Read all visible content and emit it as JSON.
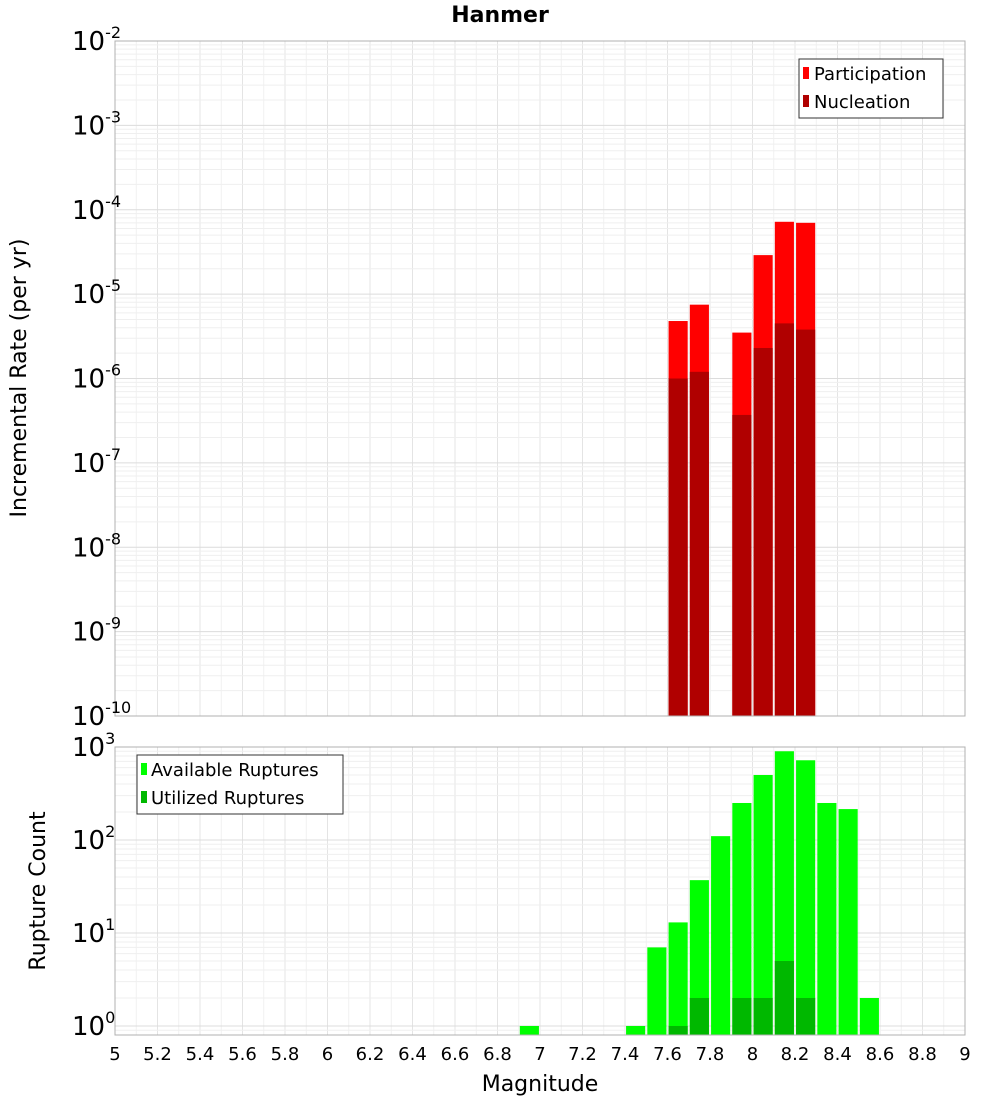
{
  "chart_data": [
    {
      "type": "bar",
      "title": "Hanmer",
      "xlabel": "",
      "ylabel": "Incremental Rate (per yr)",
      "yscale": "log",
      "xlim": [
        5,
        9
      ],
      "ylim": [
        1e-10,
        0.01
      ],
      "ytick_base": "10",
      "ytick_exponents": [
        "-10",
        "-9",
        "-8",
        "-7",
        "-6",
        "-5",
        "-4",
        "-3",
        "-2"
      ],
      "grid": true,
      "legend_position": "top-right",
      "bar_width": 0.09,
      "series": [
        {
          "name": "Participation",
          "color": "#ff0000",
          "x": [
            7.65,
            7.75,
            7.95,
            8.05,
            8.15,
            8.25
          ],
          "values": [
            4.8e-06,
            7.5e-06,
            3.5e-06,
            2.9e-05,
            7.2e-05,
            7e-05
          ]
        },
        {
          "name": "Nucleation",
          "color": "#b00000",
          "x": [
            7.65,
            7.75,
            7.95,
            8.05,
            8.15,
            8.25
          ],
          "values": [
            1e-06,
            1.2e-06,
            3.7e-07,
            2.3e-06,
            4.5e-06,
            3.8e-06
          ]
        }
      ]
    },
    {
      "type": "bar",
      "title": "",
      "xlabel": "Magnitude",
      "ylabel": "Rupture Count",
      "yscale": "log",
      "xlim": [
        5,
        9
      ],
      "ylim": [
        0.8,
        1000
      ],
      "ytick_base": "10",
      "ytick_exponents": [
        "0",
        "1",
        "2",
        "3"
      ],
      "xticks": [
        "5",
        "5.2",
        "5.4",
        "5.6",
        "5.8",
        "6",
        "6.2",
        "6.4",
        "6.6",
        "6.8",
        "7",
        "7.2",
        "7.4",
        "7.6",
        "7.8",
        "8",
        "8.2",
        "8.4",
        "8.6",
        "8.8",
        "9"
      ],
      "grid": true,
      "legend_position": "top-left",
      "bar_width": 0.09,
      "series": [
        {
          "name": "Available Ruptures",
          "color": "#00ff00",
          "x": [
            6.95,
            7.45,
            7.55,
            7.65,
            7.75,
            7.85,
            7.95,
            8.05,
            8.15,
            8.25,
            8.35,
            8.45,
            8.55
          ],
          "values": [
            1,
            1,
            7,
            13,
            37,
            110,
            250,
            500,
            900,
            720,
            250,
            215,
            2
          ]
        },
        {
          "name": "Utilized Ruptures",
          "color": "#00b800",
          "x": [
            7.65,
            7.75,
            7.95,
            8.05,
            8.15,
            8.25
          ],
          "values": [
            1,
            2,
            2,
            2,
            5,
            2
          ]
        }
      ]
    }
  ]
}
